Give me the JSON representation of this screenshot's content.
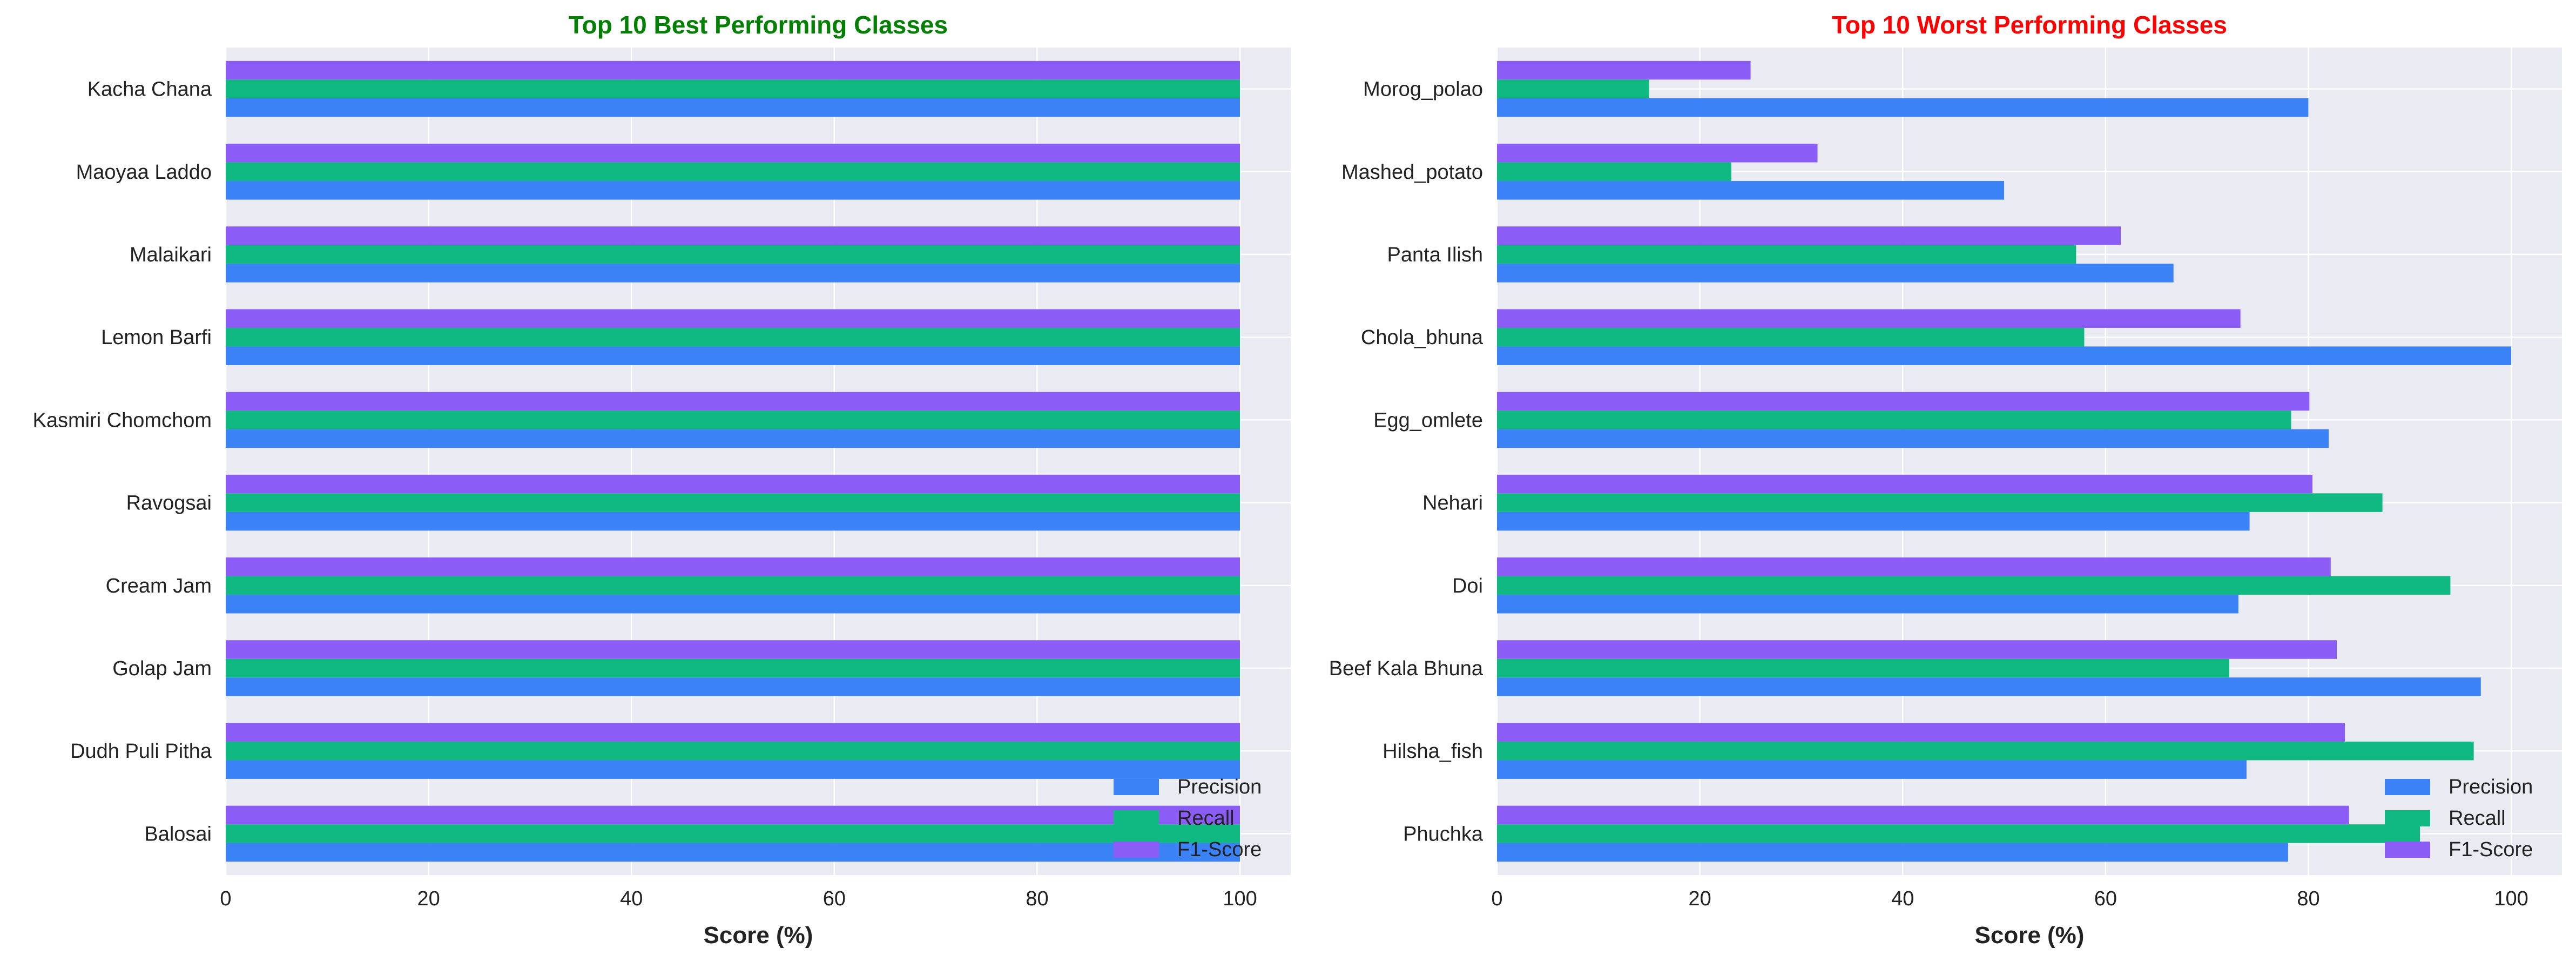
{
  "chart_data": [
    {
      "type": "bar",
      "orientation": "horizontal",
      "title": "Top 10 Best Performing Classes",
      "title_color": "#008000",
      "xlabel": "Score (%)",
      "ylabel": "",
      "xlim": [
        0,
        105
      ],
      "xticks": [
        0,
        20,
        40,
        60,
        80,
        100
      ],
      "grid": true,
      "legend_position": "lower-right",
      "categories": [
        "Kacha Chana",
        "Maoyaa Laddo",
        "Malaikari",
        "Lemon Barfi",
        "Kasmiri Chomchom",
        "Ravogsai",
        "Cream Jam",
        "Golap Jam",
        "Dudh Puli Pitha",
        "Balosai"
      ],
      "series": [
        {
          "name": "Precision",
          "color": "#3b82f6",
          "values": [
            100,
            100,
            100,
            100,
            100,
            100,
            100,
            100,
            100,
            100
          ]
        },
        {
          "name": "Recall",
          "color": "#10b981",
          "values": [
            100,
            100,
            100,
            100,
            100,
            100,
            100,
            100,
            100,
            100
          ]
        },
        {
          "name": "F1-Score",
          "color": "#8b5cf6",
          "values": [
            100,
            100,
            100,
            100,
            100,
            100,
            100,
            100,
            100,
            100
          ]
        }
      ]
    },
    {
      "type": "bar",
      "orientation": "horizontal",
      "title": "Top 10 Worst Performing Classes",
      "title_color": "#ff0000",
      "xlabel": "Score (%)",
      "ylabel": "",
      "xlim": [
        0,
        105
      ],
      "xticks": [
        0,
        20,
        40,
        60,
        80,
        100
      ],
      "grid": true,
      "legend_position": "lower-right",
      "categories": [
        "Morog_polao",
        "Mashed_potato",
        "Panta Ilish",
        "Chola_bhuna",
        "Egg_omlete",
        "Nehari",
        "Doi",
        "Beef Kala Bhuna",
        "Hilsha_fish",
        "Phuchka"
      ],
      "series": [
        {
          "name": "Precision",
          "color": "#3b82f6",
          "values": [
            80.0,
            50.0,
            66.7,
            100.0,
            82.0,
            74.2,
            73.1,
            97.0,
            73.9,
            78.0
          ]
        },
        {
          "name": "Recall",
          "color": "#10b981",
          "values": [
            15.0,
            23.1,
            57.1,
            57.9,
            78.3,
            87.3,
            94.0,
            72.2,
            96.3,
            91.0
          ]
        },
        {
          "name": "F1-Score",
          "color": "#8b5cf6",
          "values": [
            25.0,
            31.6,
            61.5,
            73.3,
            80.1,
            80.4,
            82.2,
            82.8,
            83.6,
            84.0
          ]
        }
      ]
    }
  ]
}
